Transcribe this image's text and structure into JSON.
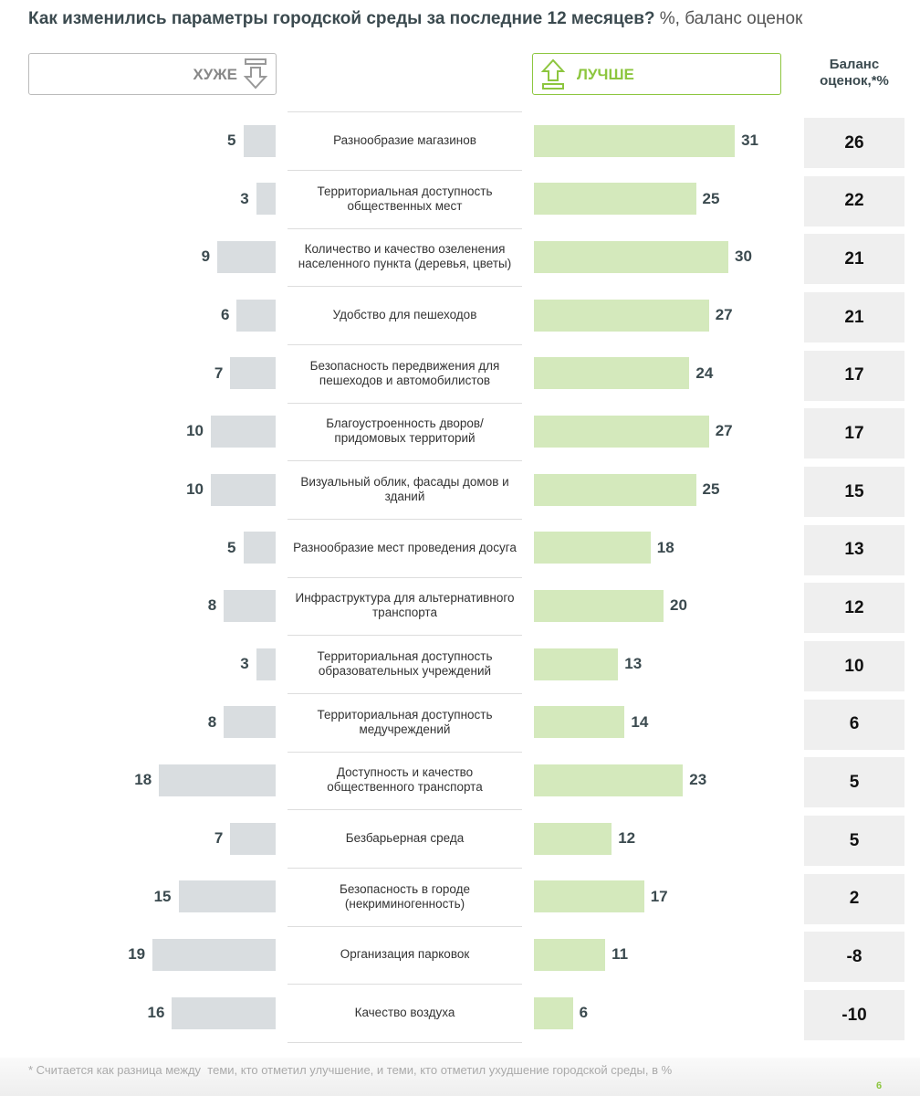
{
  "chart_data": {
    "type": "butterfly",
    "title": "Как изменились параметры городской среды за последние 12 месяцев?",
    "subtitle": "%, баланс оценок",
    "categories": [
      "Разнообразие магазинов",
      "Территориальная доступность общественных мест",
      "Количество и качество озеленения населенного пункта (деревья, цветы)",
      "Удобство для пешеходов",
      "Безопасность передвижения для пешеходов и автомобилистов",
      "Благоустроенность дворов/придомовых территорий",
      "Визуальный облик, фасады домов и зданий",
      "Разнообразие мест проведения досуга",
      "Инфраструктура для альтернативного транспорта",
      "Территориальная доступность образовательных учреждений",
      "Территориальная доступность медучреждений",
      "Доступность и качество общественного транспорта",
      "Безбарьерная среда",
      "Безопасность в городе (некриминогенность)",
      "Организация парковок",
      "Качество воздуха"
    ],
    "series": [
      {
        "name": "ХУЖЕ",
        "color": "#d9dde0",
        "values": [
          5,
          3,
          9,
          6,
          7,
          10,
          10,
          5,
          8,
          3,
          8,
          18,
          7,
          15,
          19,
          16
        ]
      },
      {
        "name": "ЛУЧШЕ",
        "color": "#d4e9bc",
        "values": [
          31,
          25,
          30,
          27,
          24,
          27,
          25,
          18,
          20,
          13,
          14,
          23,
          12,
          17,
          11,
          6
        ]
      }
    ],
    "balance": {
      "name": "Баланс оценок,*%",
      "color": "#efefef",
      "values": [
        26,
        22,
        21,
        21,
        17,
        17,
        15,
        13,
        12,
        10,
        6,
        5,
        5,
        2,
        -8,
        -10
      ]
    },
    "footnote": "* Считается как разница между  теми, кто отметил улучшение, и теми, кто отметил ухудшение городской среды, в %",
    "page_number": "6"
  }
}
